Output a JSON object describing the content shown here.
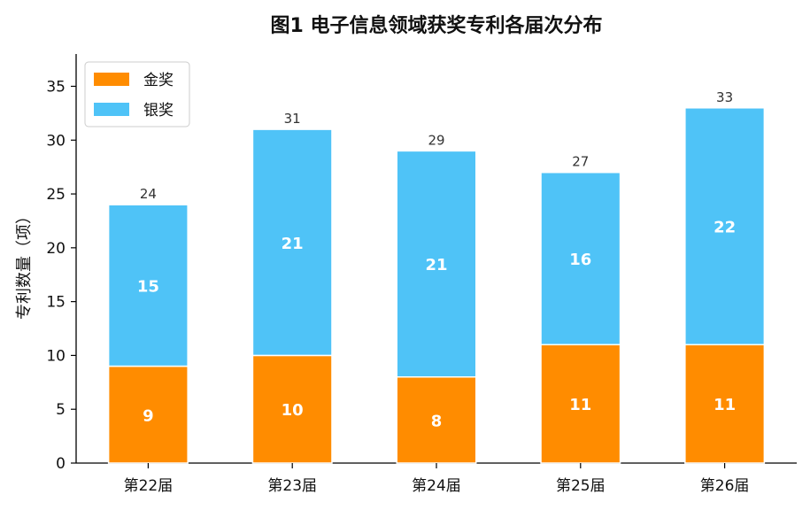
{
  "chart_data": {
    "type": "bar",
    "stacked": true,
    "title": "图1  电子信息领域获奖专利各届次分布",
    "xlabel": "",
    "ylabel": "专利数量（项）",
    "categories": [
      "第22届",
      "第23届",
      "第24届",
      "第25届",
      "第26届"
    ],
    "series": [
      {
        "name": "金奖",
        "values": [
          9,
          10,
          8,
          11,
          11
        ],
        "color": "#FF8C00"
      },
      {
        "name": "银奖",
        "values": [
          15,
          21,
          21,
          16,
          22
        ],
        "color": "#4FC3F7"
      }
    ],
    "totals": [
      24,
      31,
      29,
      27,
      33
    ],
    "ylim": [
      0,
      38
    ],
    "yticks": [
      0,
      5,
      10,
      15,
      20,
      25,
      30,
      35
    ],
    "grid": false,
    "legend_position": "top-left"
  }
}
